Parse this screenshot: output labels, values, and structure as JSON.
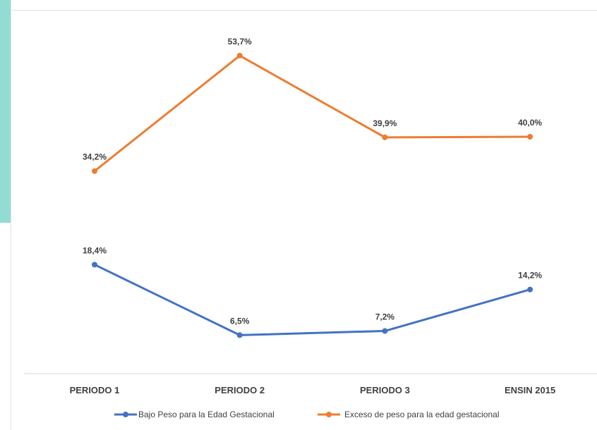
{
  "chart_data": {
    "type": "line",
    "categories": [
      "PERIODO 1",
      "PERIODO 2",
      "PERIODO 3",
      "ENSIN 2015"
    ],
    "series": [
      {
        "name": "Bajo Peso para la Edad Gestacional",
        "values": [
          18.4,
          6.5,
          7.2,
          14.2
        ],
        "labels": [
          "18,4%",
          "6,5%",
          "7,2%",
          "14,2%"
        ],
        "color": "#4472c4"
      },
      {
        "name": "Exceso de peso para la edad gestacional",
        "values": [
          34.2,
          53.7,
          39.9,
          40.0
        ],
        "labels": [
          "34,2%",
          "53,7%",
          "39,9%",
          "40,0%"
        ],
        "color": "#ed7d31"
      }
    ],
    "title": "",
    "xlabel": "",
    "ylabel": "",
    "ylim": [
      0,
      60
    ],
    "grid": false,
    "legend": "bottom"
  },
  "colors": {
    "accent": "#93dcd3",
    "axis": "#d9d9d9",
    "text": "#404040"
  }
}
